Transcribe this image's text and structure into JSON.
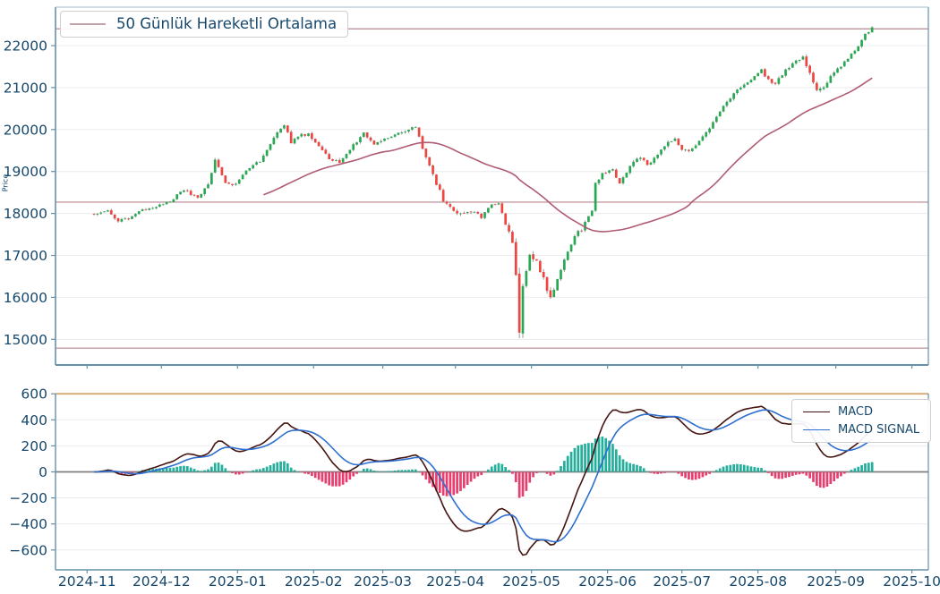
{
  "chart_data": {
    "type": "candlestick",
    "title_legend": "50 Günlük Hareketli Ortalama",
    "x_ticks": [
      {
        "label": "2024-11",
        "day": -2
      },
      {
        "label": "2024-12",
        "day": 19.5
      },
      {
        "label": "2025-01",
        "day": 41.5
      },
      {
        "label": "2025-02",
        "day": 63.5
      },
      {
        "label": "2025-03",
        "day": 83.5
      },
      {
        "label": "2025-04",
        "day": 104.5
      },
      {
        "label": "2025-05",
        "day": 126.5
      },
      {
        "label": "2025-06",
        "day": 148.5
      },
      {
        "label": "2025-07",
        "day": 170
      },
      {
        "label": "2025-08",
        "day": 192
      },
      {
        "label": "2025-09",
        "day": 214.5
      },
      {
        "label": "2025-10",
        "day": 236.5
      }
    ],
    "price_panel": {
      "ylabel": "Price",
      "y_ticks": [
        22000,
        21000,
        20000,
        19000,
        18000,
        17000,
        16000,
        15000
      ],
      "ylim": [
        14390,
        22920
      ],
      "hlines": [
        22400,
        18270,
        14790
      ],
      "ma_window": 50,
      "num_days": 226,
      "ohlc_anchors": [
        [
          0,
          17980,
          60
        ],
        [
          4,
          18060,
          60
        ],
        [
          7,
          17820,
          70
        ],
        [
          10,
          17880,
          60
        ],
        [
          14,
          18080,
          60
        ],
        [
          18,
          18170,
          60
        ],
        [
          22,
          18300,
          60
        ],
        [
          26,
          18560,
          70
        ],
        [
          30,
          18380,
          70
        ],
        [
          33,
          18700,
          80
        ],
        [
          35,
          19280,
          80
        ],
        [
          38,
          18760,
          80
        ],
        [
          41,
          18680,
          70
        ],
        [
          44,
          19020,
          80
        ],
        [
          48,
          19260,
          80
        ],
        [
          52,
          19780,
          90
        ],
        [
          55,
          20130,
          80
        ],
        [
          57,
          19680,
          90
        ],
        [
          59,
          19860,
          80
        ],
        [
          62,
          19900,
          80
        ],
        [
          65,
          19620,
          80
        ],
        [
          68,
          19320,
          90
        ],
        [
          71,
          19180,
          95
        ],
        [
          74,
          19500,
          85
        ],
        [
          78,
          19960,
          80
        ],
        [
          81,
          19620,
          80
        ],
        [
          84,
          19780,
          80
        ],
        [
          87,
          19860,
          80
        ],
        [
          90,
          19960,
          70
        ],
        [
          93,
          20070,
          70
        ],
        [
          95,
          19520,
          100
        ],
        [
          98,
          18920,
          110
        ],
        [
          101,
          18330,
          110
        ],
        [
          103,
          18130,
          100
        ],
        [
          106,
          17960,
          90
        ],
        [
          109,
          18060,
          90
        ],
        [
          112,
          17920,
          90
        ],
        [
          115,
          18210,
          90
        ],
        [
          117,
          18240,
          80
        ],
        [
          119,
          17780,
          110
        ],
        [
          121,
          17280,
          140
        ],
        [
          122,
          16550,
          180
        ],
        [
          123,
          15150,
          300
        ],
        [
          124,
          16350,
          220
        ],
        [
          126,
          17000,
          150
        ],
        [
          128,
          16850,
          130
        ],
        [
          130,
          16450,
          130
        ],
        [
          132,
          15980,
          140
        ],
        [
          134,
          16450,
          130
        ],
        [
          136,
          16920,
          120
        ],
        [
          139,
          17480,
          100
        ],
        [
          141,
          17620,
          100
        ],
        [
          143,
          17900,
          90
        ],
        [
          144,
          18060,
          80
        ],
        [
          145,
          18720,
          90
        ],
        [
          147,
          18960,
          80
        ],
        [
          150,
          19020,
          80
        ],
        [
          152,
          18720,
          80
        ],
        [
          155,
          19120,
          80
        ],
        [
          158,
          19360,
          80
        ],
        [
          160,
          19160,
          80
        ],
        [
          163,
          19420,
          80
        ],
        [
          166,
          19690,
          80
        ],
        [
          168,
          19760,
          70
        ],
        [
          170,
          19520,
          80
        ],
        [
          172,
          19490,
          70
        ],
        [
          175,
          19710,
          70
        ],
        [
          178,
          20010,
          80
        ],
        [
          181,
          20420,
          80
        ],
        [
          184,
          20760,
          80
        ],
        [
          187,
          21010,
          70
        ],
        [
          190,
          21160,
          70
        ],
        [
          193,
          21440,
          80
        ],
        [
          195,
          21160,
          90
        ],
        [
          197,
          21120,
          80
        ],
        [
          200,
          21410,
          80
        ],
        [
          203,
          21660,
          80
        ],
        [
          205,
          21710,
          80
        ],
        [
          207,
          21320,
          100
        ],
        [
          209,
          20960,
          100
        ],
        [
          211,
          21010,
          90
        ],
        [
          213,
          21260,
          90
        ],
        [
          216,
          21510,
          80
        ],
        [
          219,
          21810,
          80
        ],
        [
          221,
          22010,
          70
        ],
        [
          223,
          22260,
          70
        ],
        [
          225,
          22430,
          60
        ]
      ]
    },
    "macd_panel": {
      "y_ticks": [
        {
          "label": "600",
          "value": 600
        },
        {
          "label": "400",
          "value": 400
        },
        {
          "label": "200",
          "value": 200
        },
        {
          "label": "0",
          "value": 0
        },
        {
          "label": "−200",
          "value": -200
        },
        {
          "label": "−400",
          "value": -400
        },
        {
          "label": "−600",
          "value": -600
        }
      ],
      "ylim": [
        -752,
        601
      ],
      "legend": [
        "MACD",
        "MACD SIGNAL"
      ],
      "params": {
        "fast": 12,
        "slow": 26,
        "signal": 9
      },
      "top_hline": 600
    },
    "colors": {
      "up": "#29a853",
      "down": "#ee4540",
      "wick": "#8f8f8f",
      "ma": "#b05c72",
      "hline": "#c49ba1",
      "macd": "#451511",
      "signal": "#2e6fd0",
      "hist_pos": "#23af9c",
      "hist_neg": "#e83e6e",
      "zero": "#7f7f7f",
      "top_hline": "#d9a870",
      "axis_text": "#17486b",
      "spine": "#6690aa",
      "grid": "#ececf0"
    }
  }
}
